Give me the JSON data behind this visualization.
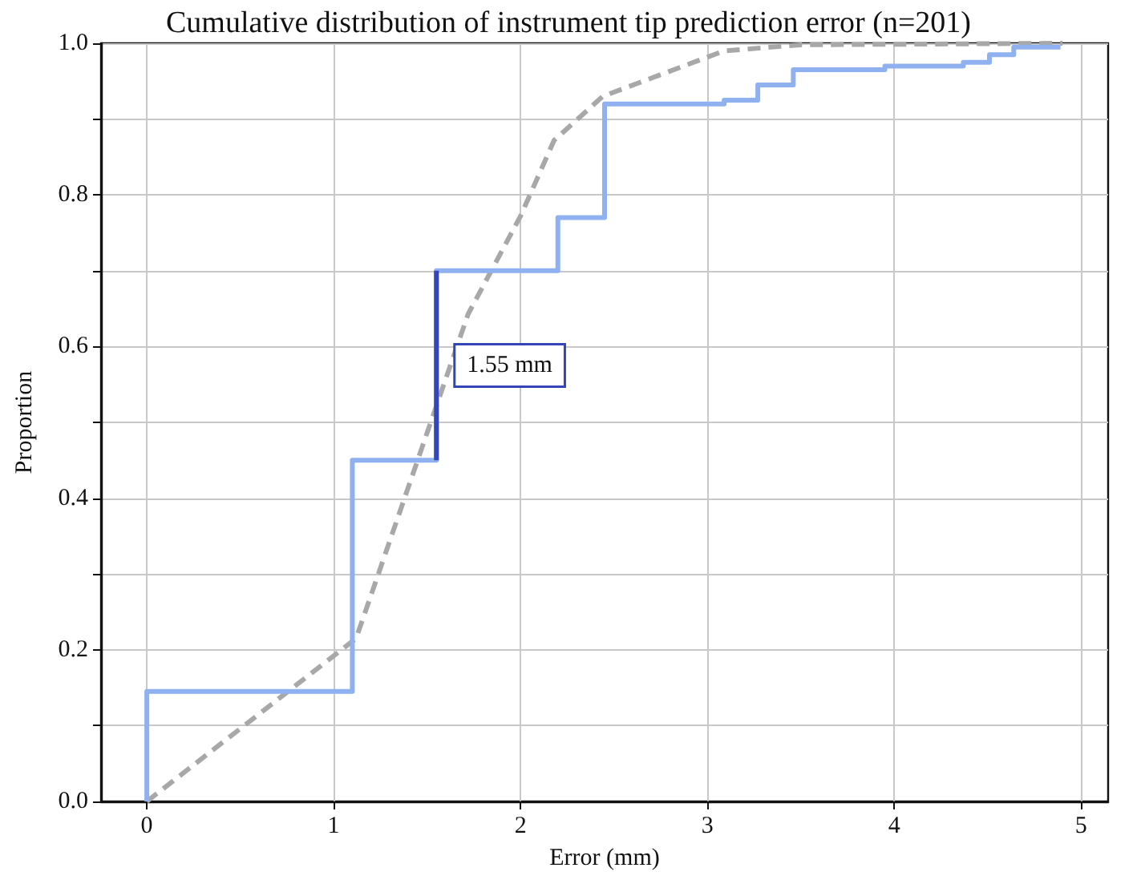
{
  "chart_data": {
    "type": "step",
    "title": "Cumulative distribution of instrument tip prediction error (n=201)",
    "xlabel": "Error (mm)",
    "ylabel": "Proportion",
    "xlim": [
      -0.245,
      5.145
    ],
    "xticks": [
      0,
      1,
      2,
      3,
      4,
      5
    ],
    "ylim": [
      0,
      1
    ],
    "yticks": [
      {
        "value": 0,
        "label": "0.0"
      },
      {
        "value": 0.1,
        "label": null
      },
      {
        "value": 0.2,
        "label": "0.2"
      },
      {
        "value": 0.3,
        "label": null
      },
      {
        "value": 0.4,
        "label": "0.4"
      },
      {
        "value": 0.5,
        "label": null
      },
      {
        "value": 0.6,
        "label": "0.6"
      },
      {
        "value": 0.7,
        "label": null
      },
      {
        "value": 0.8,
        "label": "0.8"
      },
      {
        "value": 0.9,
        "label": null
      },
      {
        "value": 1,
        "label": "1.0"
      }
    ],
    "grid": true,
    "marker": "none",
    "series": [
      {
        "type": "line",
        "line_style": "dashed",
        "color": "#a8a8a8",
        "x": [
          0,
          1.12,
          1.72,
          2.0,
          2.18,
          2.44,
          3.09,
          3.5,
          4.9
        ],
        "values": [
          0,
          0.215,
          0.643,
          0.772,
          0.872,
          0.93,
          0.99,
          0.998,
          1.0
        ]
      },
      {
        "line_style": "solid",
        "color": "#8fb1f0",
        "x": [
          0,
          0,
          1.1,
          1.55,
          2.2,
          2.45,
          3.09,
          3.27,
          3.46,
          3.95,
          4.37,
          4.51,
          4.64,
          4.89
        ],
        "values": [
          0,
          0.145,
          0.45,
          0.7,
          0.77,
          0.92,
          0.925,
          0.945,
          0.965,
          0.97,
          0.975,
          0.985,
          0.995,
          0.995
        ]
      },
      {
        "type": "line",
        "line_style": "solid",
        "color": "#3346b8",
        "x": [
          1.55,
          1.55
        ],
        "values": [
          0.45,
          0.7
        ]
      }
    ],
    "annotations": [
      {
        "text": "1.55 mm",
        "x": 1.55,
        "y": 0.575
      }
    ]
  }
}
